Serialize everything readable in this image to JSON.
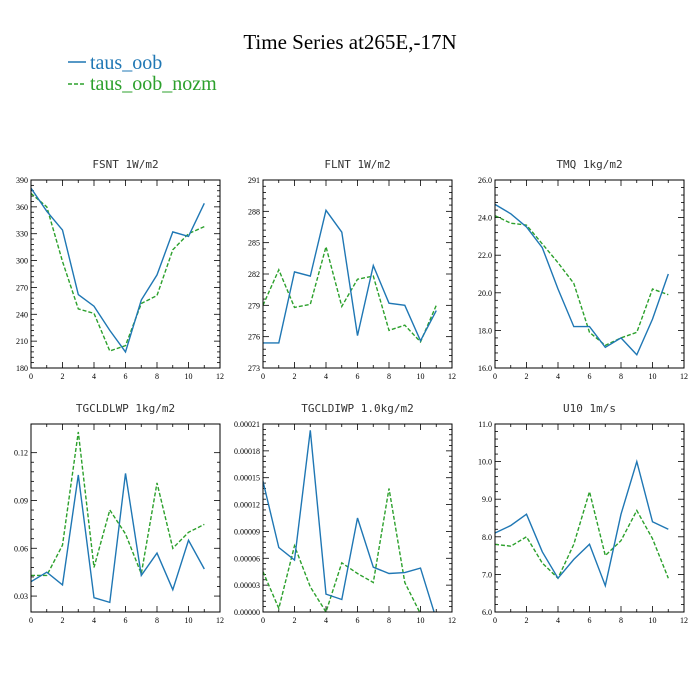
{
  "figure": {
    "title": "Time Series at265E,-17N",
    "legend": [
      {
        "name": "taus_oob",
        "color": "#1f77b4",
        "dash": "solid"
      },
      {
        "name": "taus_oob_nozm",
        "color": "#2ca02c",
        "dash": "dashed"
      }
    ]
  },
  "chart_data": [
    {
      "type": "line",
      "title": "FSNT   1W/m2",
      "xlim": [
        0,
        12
      ],
      "xticks": [
        "0",
        "2",
        "4",
        "6",
        "8",
        "10",
        "12"
      ],
      "ylim": [
        180,
        390
      ],
      "yticks": [
        "180",
        "210",
        "240",
        "270",
        "300",
        "330",
        "360",
        "390"
      ],
      "x": [
        0,
        1,
        2,
        3,
        4,
        5,
        6,
        7,
        8,
        9,
        10,
        11
      ],
      "series": [
        {
          "name": "taus_oob",
          "values": [
            381,
            355,
            334,
            262,
            249,
            222,
            198,
            256,
            284,
            332,
            327,
            364
          ]
        },
        {
          "name": "taus_oob_nozm",
          "values": [
            375,
            360,
            299,
            246,
            241,
            199,
            205,
            252,
            261,
            312,
            330,
            338
          ]
        }
      ]
    },
    {
      "type": "line",
      "title": "FLNT   1W/m2",
      "xlim": [
        0,
        12
      ],
      "xticks": [
        "0",
        "2",
        "4",
        "6",
        "8",
        "10",
        "12"
      ],
      "ylim": [
        273,
        291
      ],
      "yticks": [
        "273",
        "276",
        "279",
        "282",
        "285",
        "288",
        "291"
      ],
      "x": [
        0,
        1,
        2,
        3,
        4,
        5,
        6,
        7,
        8,
        9,
        10,
        11
      ],
      "series": [
        {
          "name": "taus_oob",
          "values": [
            275.4,
            275.4,
            282.2,
            281.8,
            288.1,
            286.0,
            276.1,
            282.8,
            279.2,
            279.0,
            275.6,
            278.5
          ]
        },
        {
          "name": "taus_oob_nozm",
          "values": [
            279.0,
            282.4,
            278.8,
            279.1,
            284.6,
            278.9,
            281.5,
            281.8,
            276.6,
            277.1,
            275.5,
            279.0
          ]
        }
      ]
    },
    {
      "type": "line",
      "title": "TMQ   1kg/m2",
      "xlim": [
        0,
        12
      ],
      "xticks": [
        "0",
        "2",
        "4",
        "6",
        "8",
        "10",
        "12"
      ],
      "ylim": [
        16.0,
        26.0
      ],
      "yticks": [
        "16.0",
        "18.0",
        "20.0",
        "22.0",
        "24.0",
        "26.0"
      ],
      "x": [
        0,
        1,
        2,
        3,
        4,
        5,
        6,
        7,
        8,
        9,
        10,
        11
      ],
      "series": [
        {
          "name": "taus_oob",
          "values": [
            24.7,
            24.2,
            23.5,
            22.4,
            20.2,
            18.2,
            18.2,
            17.1,
            17.6,
            16.7,
            18.6,
            21.0
          ]
        },
        {
          "name": "taus_oob_nozm",
          "values": [
            24.1,
            23.7,
            23.6,
            22.6,
            21.6,
            20.5,
            17.9,
            17.2,
            17.6,
            17.9,
            20.2,
            19.9
          ]
        }
      ]
    },
    {
      "type": "line",
      "title": "TGCLDLWP   1kg/m2",
      "xlim": [
        0,
        12
      ],
      "xticks": [
        "0",
        "2",
        "4",
        "6",
        "8",
        "10",
        "12"
      ],
      "ylim": [
        0.02,
        0.138
      ],
      "yticks": [
        "0.03",
        "0.06",
        "0.09",
        "0.12"
      ],
      "x": [
        0,
        1,
        2,
        3,
        4,
        5,
        6,
        7,
        8,
        9,
        10,
        11
      ],
      "series": [
        {
          "name": "taus_oob",
          "values": [
            0.039,
            0.045,
            0.037,
            0.106,
            0.029,
            0.026,
            0.107,
            0.043,
            0.057,
            0.034,
            0.065,
            0.047
          ]
        },
        {
          "name": "taus_oob_nozm",
          "values": [
            0.043,
            0.043,
            0.062,
            0.133,
            0.048,
            0.084,
            0.069,
            0.044,
            0.101,
            0.06,
            0.07,
            0.075
          ]
        }
      ]
    },
    {
      "type": "line",
      "title": "TGCLDIWP   1.0kg/m2",
      "xlim": [
        0,
        12
      ],
      "xticks": [
        "0",
        "2",
        "4",
        "6",
        "8",
        "10",
        "12"
      ],
      "ylim": [
        0,
        0.00021
      ],
      "yticks": [
        "0.00000",
        "0.00003",
        "0.00006",
        "0.00009",
        "0.00012",
        "0.00015",
        "0.00018",
        "0.00021"
      ],
      "x": [
        0,
        1,
        2,
        3,
        4,
        5,
        6,
        7,
        8,
        9,
        10,
        11
      ],
      "series": [
        {
          "name": "taus_oob",
          "values": [
            0.000146,
            7.2e-05,
            5.8e-05,
            0.000203,
            2e-05,
            1.4e-05,
            0.000105,
            5e-05,
            4.3e-05,
            4.4e-05,
            4.9e-05,
            -8e-06
          ]
        },
        {
          "name": "taus_oob_nozm",
          "values": [
            4.5e-05,
            4e-06,
            7.4e-05,
            2.8e-05,
            0.0,
            5.5e-05,
            4.3e-05,
            3.3e-05,
            0.000138,
            3.3e-05,
            -2e-06,
            -3e-06
          ]
        }
      ]
    },
    {
      "type": "line",
      "title": "U10   1m/s",
      "xlim": [
        0,
        12
      ],
      "xticks": [
        "0",
        "2",
        "4",
        "6",
        "8",
        "10",
        "12"
      ],
      "ylim": [
        6.0,
        11.0
      ],
      "yticks": [
        "6.0",
        "7.0",
        "8.0",
        "9.0",
        "10.0",
        "11.0"
      ],
      "x": [
        0,
        1,
        2,
        3,
        4,
        5,
        6,
        7,
        8,
        9,
        10,
        11
      ],
      "series": [
        {
          "name": "taus_oob",
          "values": [
            8.1,
            8.3,
            8.6,
            7.6,
            6.9,
            7.4,
            7.8,
            6.7,
            8.6,
            10.0,
            8.4,
            8.2
          ]
        },
        {
          "name": "taus_oob_nozm",
          "values": [
            7.8,
            7.75,
            8.0,
            7.3,
            6.9,
            7.8,
            9.2,
            7.5,
            7.9,
            8.7,
            7.95,
            6.9
          ]
        }
      ]
    }
  ]
}
